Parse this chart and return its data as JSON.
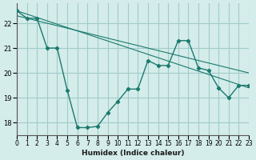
{
  "xlabel": "Humidex (Indice chaleur)",
  "bg_color": "#d4ecea",
  "grid_color": "#a0ccc8",
  "line_color": "#1a7a6e",
  "xlim": [
    0,
    23
  ],
  "ylim": [
    17.5,
    22.8
  ],
  "x_ticks": [
    0,
    1,
    2,
    3,
    4,
    5,
    6,
    7,
    8,
    9,
    10,
    11,
    12,
    13,
    14,
    15,
    16,
    17,
    18,
    19,
    20,
    21,
    22,
    23
  ],
  "y_ticks": [
    18,
    19,
    20,
    21,
    22
  ],
  "line1_x": [
    0,
    1,
    2,
    3,
    4,
    5,
    6,
    7,
    8,
    9,
    10,
    11,
    12,
    13,
    14,
    15,
    16,
    17,
    18,
    19,
    20,
    21,
    22,
    23
  ],
  "line1_y": [
    22.5,
    22.2,
    22.2,
    21.0,
    21.0,
    19.3,
    17.8,
    17.8,
    17.85,
    18.4,
    18.85,
    19.35,
    19.35,
    20.5,
    20.3,
    20.3,
    21.3,
    21.3,
    20.2,
    20.1,
    19.4,
    19.0,
    19.5,
    19.5
  ],
  "line2_x": [
    0,
    23
  ],
  "line2_y": [
    22.5,
    19.4
  ],
  "line3_x": [
    0,
    23
  ],
  "line3_y": [
    22.3,
    20.0
  ]
}
